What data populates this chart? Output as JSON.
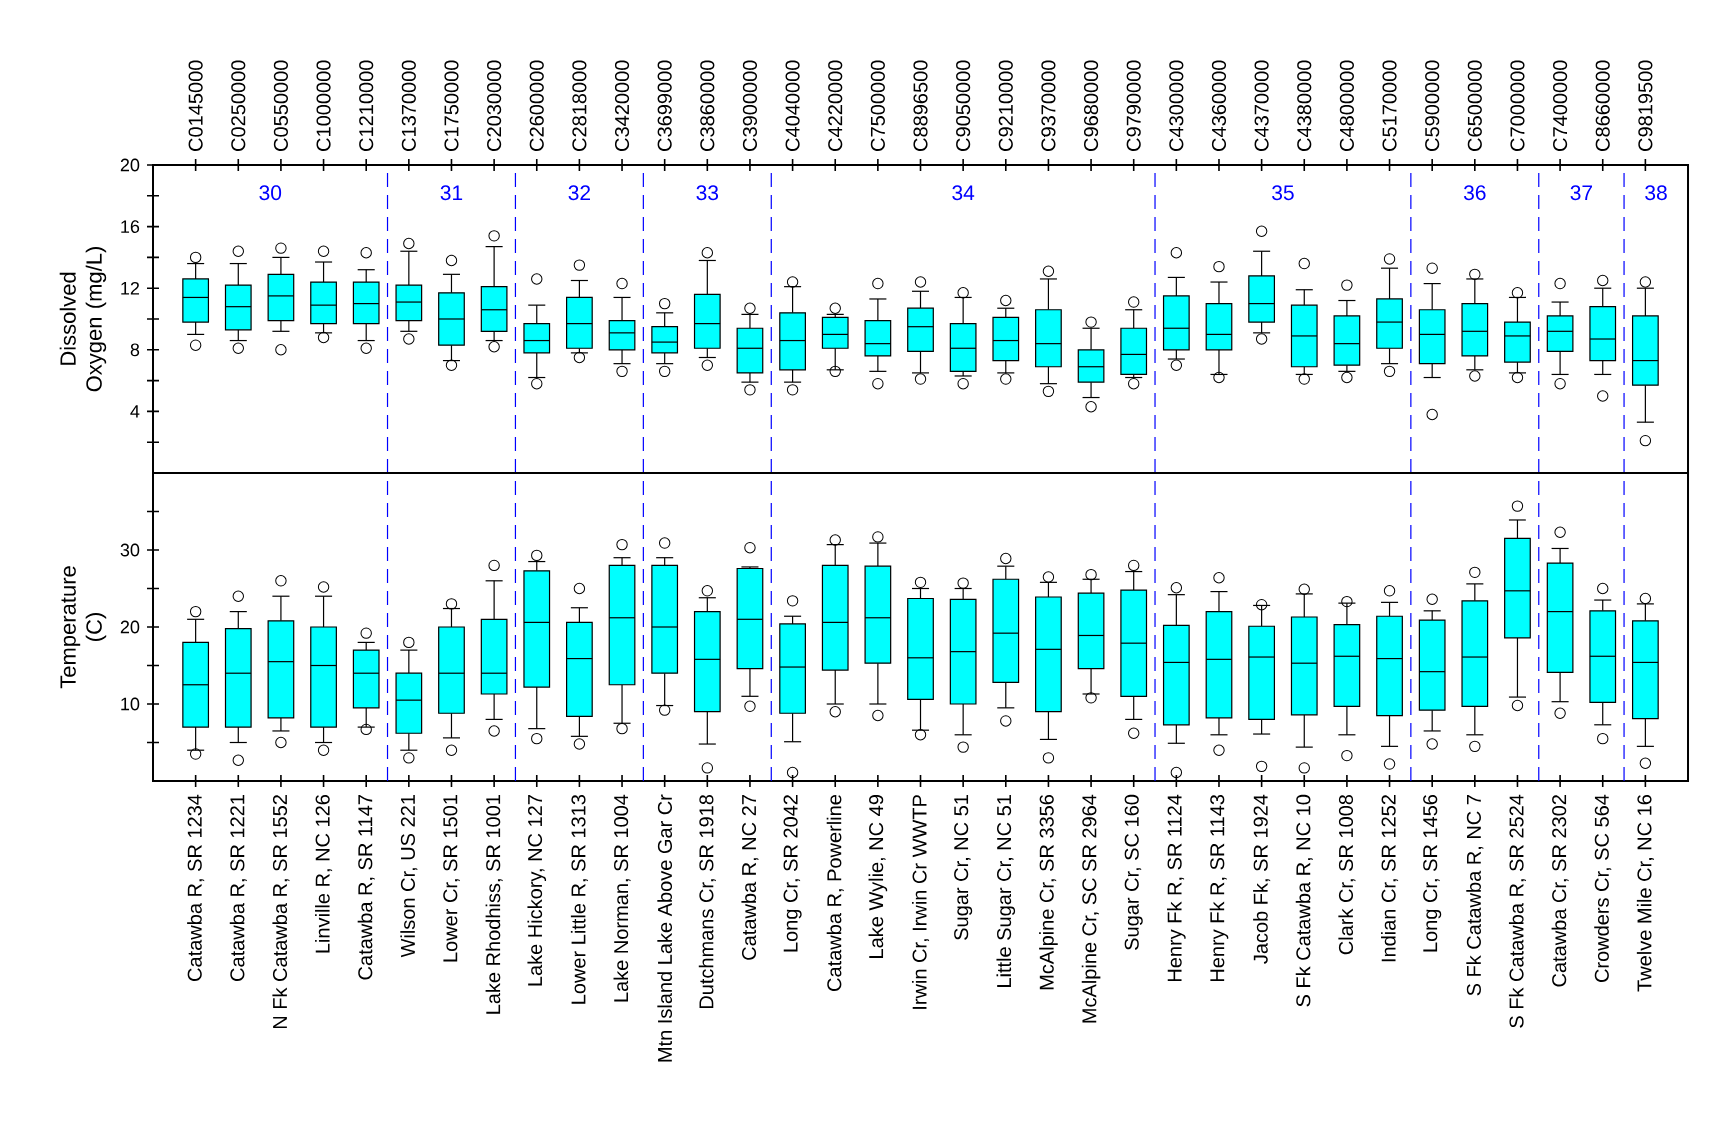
{
  "chart_data": [
    {
      "type": "box",
      "ylabel": "Dissolved Oxygen (mg/L)",
      "categories": [
        "C0145000",
        "C0250000",
        "C0550000",
        "C1000000",
        "C1210000",
        "C1370000",
        "C1750000",
        "C2030000",
        "C2600000",
        "C2818000",
        "C3420000",
        "C3699000",
        "C3860000",
        "C3900000",
        "C4040000",
        "C4220000",
        "C7500000",
        "C8896500",
        "C9050000",
        "C9210000",
        "C9370000",
        "C9680000",
        "C9790000",
        "C4300000",
        "C4360000",
        "C4370000",
        "C4380000",
        "C4800000",
        "C5170000",
        "C5900000",
        "C6500000",
        "C7000000",
        "C7400000",
        "C8660000",
        "C9819500"
      ],
      "ylim": [
        0,
        20
      ],
      "yticks": [
        {
          "value": 2,
          "label": null
        },
        4,
        {
          "value": 6,
          "label": null
        },
        8,
        {
          "value": 10,
          "label": null
        },
        12,
        {
          "value": 14,
          "label": null
        },
        16,
        {
          "value": 18,
          "label": null
        },
        20
      ],
      "series": [
        {
          "color": "#00ffff",
          "boxes": [
            {
              "low": 9.0,
              "q1": 9.8,
              "median": 11.4,
              "q3": 12.6,
              "high": 13.6,
              "outliers": [
                8.3,
                14.0
              ]
            },
            {
              "low": 8.6,
              "q1": 9.3,
              "median": 10.8,
              "q3": 12.2,
              "high": 13.6,
              "outliers": [
                8.1,
                14.4
              ]
            },
            {
              "low": 9.2,
              "q1": 9.9,
              "median": 11.5,
              "q3": 12.9,
              "high": 14.0,
              "outliers": [
                8.0,
                14.6
              ]
            },
            {
              "low": 9.1,
              "q1": 9.7,
              "median": 10.9,
              "q3": 12.4,
              "high": 13.7,
              "outliers": [
                8.8,
                14.4
              ]
            },
            {
              "low": 8.6,
              "q1": 9.7,
              "median": 11.0,
              "q3": 12.4,
              "high": 13.2,
              "outliers": [
                8.1,
                14.3
              ]
            },
            {
              "low": 9.2,
              "q1": 9.9,
              "median": 11.1,
              "q3": 12.2,
              "high": 14.4,
              "outliers": [
                8.7,
                14.9
              ]
            },
            {
              "low": 7.3,
              "q1": 8.3,
              "median": 10.0,
              "q3": 11.7,
              "high": 12.9,
              "outliers": [
                7.0,
                13.8
              ]
            },
            {
              "low": 8.6,
              "q1": 9.2,
              "median": 10.6,
              "q3": 12.1,
              "high": 14.7,
              "outliers": [
                8.2,
                15.4
              ]
            },
            {
              "low": 6.2,
              "q1": 7.8,
              "median": 8.6,
              "q3": 9.7,
              "high": 10.9,
              "outliers": [
                5.8,
                12.6
              ]
            },
            {
              "low": 7.8,
              "q1": 8.1,
              "median": 9.7,
              "q3": 11.4,
              "high": 12.5,
              "outliers": [
                7.5,
                13.5
              ]
            },
            {
              "low": 7.1,
              "q1": 8.0,
              "median": 9.1,
              "q3": 9.9,
              "high": 11.4,
              "outliers": [
                6.6,
                12.3
              ]
            },
            {
              "low": 7.1,
              "q1": 7.8,
              "median": 8.5,
              "q3": 9.5,
              "high": 10.4,
              "outliers": [
                6.6,
                11.0
              ]
            },
            {
              "low": 7.5,
              "q1": 8.1,
              "median": 9.7,
              "q3": 11.6,
              "high": 13.8,
              "outliers": [
                7.0,
                14.3
              ]
            },
            {
              "low": 5.9,
              "q1": 6.5,
              "median": 8.1,
              "q3": 9.4,
              "high": 10.3,
              "outliers": [
                5.4,
                10.7
              ]
            },
            {
              "low": 5.9,
              "q1": 6.7,
              "median": 8.6,
              "q3": 10.4,
              "high": 12.1,
              "outliers": [
                5.4,
                12.4
              ]
            },
            {
              "low": 6.7,
              "q1": 8.1,
              "median": 9.0,
              "q3": 10.1,
              "high": 10.3,
              "outliers": [
                6.6,
                10.7
              ]
            },
            {
              "low": 6.6,
              "q1": 7.6,
              "median": 8.4,
              "q3": 9.9,
              "high": 11.3,
              "outliers": [
                5.8,
                12.3
              ]
            },
            {
              "low": 6.5,
              "q1": 7.9,
              "median": 9.5,
              "q3": 10.7,
              "high": 11.8,
              "outliers": [
                6.1,
                12.4
              ]
            },
            {
              "low": 6.3,
              "q1": 6.6,
              "median": 8.1,
              "q3": 9.7,
              "high": 11.4,
              "outliers": [
                5.8,
                11.7
              ]
            },
            {
              "low": 6.5,
              "q1": 7.3,
              "median": 8.6,
              "q3": 10.1,
              "high": 10.7,
              "outliers": [
                6.1,
                11.2
              ]
            },
            {
              "low": 5.8,
              "q1": 6.9,
              "median": 8.4,
              "q3": 10.6,
              "high": 12.6,
              "outliers": [
                5.3,
                13.1
              ]
            },
            {
              "low": 4.9,
              "q1": 5.9,
              "median": 6.9,
              "q3": 8.0,
              "high": 9.4,
              "outliers": [
                4.3,
                9.8
              ]
            },
            {
              "low": 6.2,
              "q1": 6.4,
              "median": 7.7,
              "q3": 9.4,
              "high": 10.6,
              "outliers": [
                5.8,
                11.1
              ]
            },
            {
              "low": 7.4,
              "q1": 8.0,
              "median": 9.4,
              "q3": 11.5,
              "high": 12.7,
              "outliers": [
                7.0,
                14.3
              ]
            },
            {
              "low": 6.4,
              "q1": 8.0,
              "median": 9.0,
              "q3": 11.0,
              "high": 12.4,
              "outliers": [
                6.2,
                13.4
              ]
            },
            {
              "low": 9.1,
              "q1": 9.8,
              "median": 11.0,
              "q3": 12.8,
              "high": 14.4,
              "outliers": [
                8.7,
                15.7
              ]
            },
            {
              "low": 6.4,
              "q1": 6.9,
              "median": 8.9,
              "q3": 10.9,
              "high": 11.9,
              "outliers": [
                6.1,
                13.6
              ]
            },
            {
              "low": 6.6,
              "q1": 7.0,
              "median": 8.4,
              "q3": 10.2,
              "high": 11.2,
              "outliers": [
                6.2,
                12.2
              ]
            },
            {
              "low": 7.1,
              "q1": 8.1,
              "median": 9.8,
              "q3": 11.3,
              "high": 13.3,
              "outliers": [
                6.6,
                13.9
              ]
            },
            {
              "low": 6.2,
              "q1": 7.1,
              "median": 9.0,
              "q3": 10.6,
              "high": 12.3,
              "outliers": [
                3.8,
                13.3
              ]
            },
            {
              "low": 6.7,
              "q1": 7.6,
              "median": 9.2,
              "q3": 11.0,
              "high": 12.6,
              "outliers": [
                6.3,
                12.9
              ]
            },
            {
              "low": 6.5,
              "q1": 7.2,
              "median": 8.9,
              "q3": 9.8,
              "high": 11.4,
              "outliers": [
                6.2,
                11.7
              ]
            },
            {
              "low": 6.4,
              "q1": 7.9,
              "median": 9.2,
              "q3": 10.2,
              "high": 11.1,
              "outliers": [
                5.8,
                12.3
              ]
            },
            {
              "low": 6.4,
              "q1": 7.3,
              "median": 8.7,
              "q3": 10.8,
              "high": 12.0,
              "outliers": [
                5.0,
                12.5
              ]
            },
            {
              "low": 3.3,
              "q1": 5.7,
              "median": 7.3,
              "q3": 10.2,
              "high": 12.0,
              "outliers": [
                2.1,
                12.4
              ]
            }
          ]
        }
      ],
      "annotations": [
        "30",
        "31",
        "32",
        "33",
        "34",
        "35",
        "36",
        "37",
        "38"
      ]
    },
    {
      "type": "box",
      "ylabel": "Temperature (C)",
      "categories": [
        "Catawba R, SR 1234",
        "Catawba R, SR 1221",
        "N Fk Catawba R, SR 1552",
        "Linville R, NC 126",
        "Catawba R, SR 1147",
        "Wilson Cr, US 221",
        "Lower Cr, SR 1501",
        "Lake Rhodhiss, SR 1001",
        "Lake Hickory, NC 127",
        "Lower Little R, SR 1313",
        "Lake Norman, SR 1004",
        "Mtn Island Lake Above Gar Cr",
        "Dutchmans Cr, SR 1918",
        "Catawba R, NC 27",
        "Long Cr, SR 2042",
        "Catawba R, Powerline",
        "Lake Wylie, NC 49",
        "Irwin Cr, Irwin Cr WWTP",
        "Sugar Cr, NC 51",
        "Little Sugar Cr, NC 51",
        "McAlpine Cr, SR 3356",
        "McAlpine Cr, SC SR 2964",
        "Sugar Cr, SC 160",
        "Henry Fk R, SR 1124",
        "Henry Fk R, SR 1143",
        "Jacob Fk, SR 1924",
        "S Fk Catawba R, NC 10",
        "Clark Cr, SR 1008",
        "Indian Cr, SR 1252",
        "Long Cr, SR 1456",
        "S Fk Catawba R, NC 7",
        "S Fk Catawba R, SR 2524",
        "Catawba Cr, SR 2302",
        "Crowders Cr, SC 564",
        "Twelve Mile Cr, NC 16"
      ],
      "ylim": [
        0,
        40
      ],
      "yticks": [
        {
          "value": 5,
          "label": null
        },
        10,
        {
          "value": 15,
          "label": null
        },
        20,
        {
          "value": 25,
          "label": null
        },
        30,
        {
          "value": 35,
          "label": null
        }
      ],
      "series": [
        {
          "color": "#00ffff",
          "boxes": [
            {
              "low": 4,
              "q1": 7,
              "median": 12.5,
              "q3": 18,
              "high": 21,
              "outliers": [
                3.5,
                22
              ]
            },
            {
              "low": 5,
              "q1": 7,
              "median": 14,
              "q3": 19.8,
              "high": 22,
              "outliers": [
                2.7,
                24
              ]
            },
            {
              "low": 6.5,
              "q1": 8.2,
              "median": 15.5,
              "q3": 20.8,
              "high": 24,
              "outliers": [
                5,
                26
              ]
            },
            {
              "low": 5,
              "q1": 7,
              "median": 15,
              "q3": 20,
              "high": 24,
              "outliers": [
                4,
                25.2
              ]
            },
            {
              "low": 7,
              "q1": 9.5,
              "median": 14,
              "q3": 17,
              "high": 18,
              "outliers": [
                6.7,
                19.2
              ]
            },
            {
              "low": 4,
              "q1": 6.2,
              "median": 10.5,
              "q3": 14,
              "high": 17,
              "outliers": [
                3,
                18
              ]
            },
            {
              "low": 5.6,
              "q1": 8.8,
              "median": 14,
              "q3": 20,
              "high": 22.4,
              "outliers": [
                4,
                23
              ]
            },
            {
              "low": 8,
              "q1": 11.3,
              "median": 14,
              "q3": 21,
              "high": 26,
              "outliers": [
                6.5,
                28
              ]
            },
            {
              "low": 6.8,
              "q1": 12.2,
              "median": 20.6,
              "q3": 27.3,
              "high": 28.5,
              "outliers": [
                5.5,
                29.3
              ]
            },
            {
              "low": 5.8,
              "q1": 8.4,
              "median": 15.9,
              "q3": 20.6,
              "high": 22.5,
              "outliers": [
                4.8,
                25
              ]
            },
            {
              "low": 7.5,
              "q1": 12.5,
              "median": 21.2,
              "q3": 28,
              "high": 29,
              "outliers": [
                6.8,
                30.7
              ]
            },
            {
              "low": 9.8,
              "q1": 14,
              "median": 20,
              "q3": 28,
              "high": 29,
              "outliers": [
                9.2,
                30.9
              ]
            },
            {
              "low": 4.8,
              "q1": 9,
              "median": 15.8,
              "q3": 22,
              "high": 23.8,
              "outliers": [
                1.7,
                24.7
              ]
            },
            {
              "low": 11,
              "q1": 14.6,
              "median": 21,
              "q3": 27.6,
              "high": 27.8,
              "outliers": [
                9.7,
                30.3
              ]
            },
            {
              "low": 5.1,
              "q1": 8.8,
              "median": 14.8,
              "q3": 20.4,
              "high": 21.4,
              "outliers": [
                1.1,
                23.4
              ]
            },
            {
              "low": 10,
              "q1": 14.4,
              "median": 20.6,
              "q3": 28,
              "high": 30.7,
              "outliers": [
                9,
                31.3
              ]
            },
            {
              "low": 10,
              "q1": 15.3,
              "median": 21.2,
              "q3": 27.9,
              "high": 30.9,
              "outliers": [
                8.5,
                31.7
              ]
            },
            {
              "low": 6.6,
              "q1": 10.6,
              "median": 16,
              "q3": 23.7,
              "high": 25,
              "outliers": [
                6,
                25.8
              ]
            },
            {
              "low": 6,
              "q1": 10,
              "median": 16.8,
              "q3": 23.6,
              "high": 25,
              "outliers": [
                4.4,
                25.7
              ]
            },
            {
              "low": 9.5,
              "q1": 12.8,
              "median": 19.2,
              "q3": 26.2,
              "high": 27.9,
              "outliers": [
                7.8,
                28.9
              ]
            },
            {
              "low": 5.4,
              "q1": 9,
              "median": 17.1,
              "q3": 23.9,
              "high": 25.8,
              "outliers": [
                3,
                26.5
              ]
            },
            {
              "low": 11.3,
              "q1": 14.6,
              "median": 18.9,
              "q3": 24.4,
              "high": 26.2,
              "outliers": [
                10.8,
                26.8
              ]
            },
            {
              "low": 8,
              "q1": 11,
              "median": 17.9,
              "q3": 24.8,
              "high": 27.2,
              "outliers": [
                6.2,
                28
              ]
            },
            {
              "low": 4.9,
              "q1": 7.3,
              "median": 15.4,
              "q3": 20.2,
              "high": 24.2,
              "outliers": [
                1.1,
                25.1
              ]
            },
            {
              "low": 6,
              "q1": 8.2,
              "median": 15.8,
              "q3": 22,
              "high": 24.6,
              "outliers": [
                4,
                26.4
              ]
            },
            {
              "low": 6.1,
              "q1": 8,
              "median": 16.1,
              "q3": 20.1,
              "high": 22.8,
              "outliers": [
                1.9,
                22.9
              ]
            },
            {
              "low": 4.4,
              "q1": 8.6,
              "median": 15.3,
              "q3": 21.3,
              "high": 24.3,
              "outliers": [
                1.7,
                24.9
              ]
            },
            {
              "low": 6,
              "q1": 9.7,
              "median": 16.2,
              "q3": 20.3,
              "high": 23.1,
              "outliers": [
                3.3,
                23.3
              ]
            },
            {
              "low": 4.5,
              "q1": 8.5,
              "median": 15.9,
              "q3": 21.4,
              "high": 23.2,
              "outliers": [
                2.2,
                24.7
              ]
            },
            {
              "low": 6.5,
              "q1": 9.2,
              "median": 14.2,
              "q3": 20.9,
              "high": 22.1,
              "outliers": [
                4.8,
                23.6
              ]
            },
            {
              "low": 6,
              "q1": 9.7,
              "median": 16.1,
              "q3": 23.4,
              "high": 25.6,
              "outliers": [
                4.5,
                27.1
              ]
            },
            {
              "low": 10.9,
              "q1": 18.6,
              "median": 24.7,
              "q3": 31.5,
              "high": 33.9,
              "outliers": [
                9.8,
                35.7
              ]
            },
            {
              "low": 10.3,
              "q1": 14.1,
              "median": 22,
              "q3": 28.3,
              "high": 30.2,
              "outliers": [
                8.8,
                32.3
              ]
            },
            {
              "low": 7.3,
              "q1": 10.2,
              "median": 16.2,
              "q3": 22.1,
              "high": 23.5,
              "outliers": [
                5.5,
                25
              ]
            },
            {
              "low": 4.5,
              "q1": 8.1,
              "median": 15.4,
              "q3": 20.8,
              "high": 23,
              "outliers": [
                2.3,
                23.7
              ]
            }
          ]
        }
      ]
    }
  ]
}
